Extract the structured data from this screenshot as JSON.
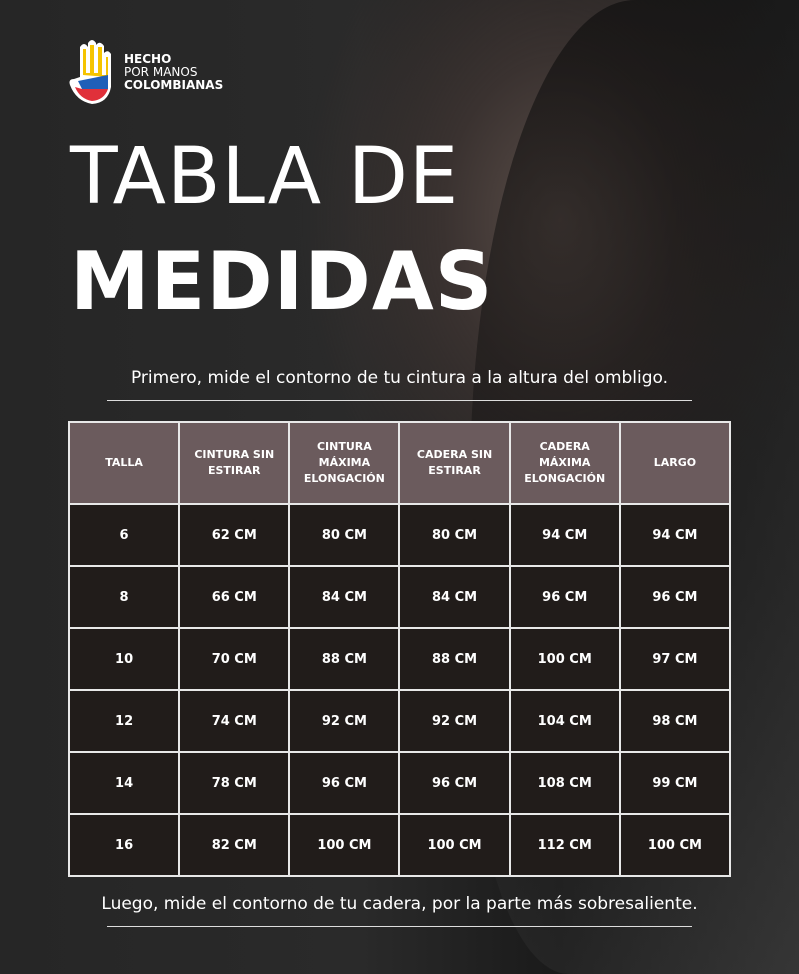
{
  "logo": {
    "line1": "HECHO",
    "line2": "POR MANOS",
    "line3": "COLOMBIANAS"
  },
  "title": {
    "line1": "TABLA DE",
    "line2": "MEDIDAS"
  },
  "intro": "Primero, mide  el contorno de tu cintura a la altura del ombligo.",
  "table": {
    "headers": [
      "TALLA",
      "CINTURA SIN ESTIRAR",
      "CINTURA MÁXIMA ELONGACIÓN",
      "CADERA SIN ESTIRAR",
      "CADERA MÁXIMA ELONGACIÓN",
      "LARGO"
    ],
    "rows": [
      [
        "6",
        "62 CM",
        "80 CM",
        "80 CM",
        "94 CM",
        "94 CM"
      ],
      [
        "8",
        "66 CM",
        "84 CM",
        "84 CM",
        "96 CM",
        "96 CM"
      ],
      [
        "10",
        "70 CM",
        "88 CM",
        "88 CM",
        "100 CM",
        "97 CM"
      ],
      [
        "12",
        "74 CM",
        "92 CM",
        "92 CM",
        "104 CM",
        "98 CM"
      ],
      [
        "14",
        "78 CM",
        "96 CM",
        "96 CM",
        "108 CM",
        "99 CM"
      ],
      [
        "16",
        "82 CM",
        "100 CM",
        "100 CM",
        "112 CM",
        "100 CM"
      ]
    ]
  },
  "footer": "Luego, mide el contorno de tu cadera, por la parte más sobresaliente.",
  "colors": {
    "header_bg": "#6b5b5d",
    "cell_bg": "#211c1a",
    "flag_yellow": "#f5c400",
    "flag_blue": "#1f5fb8",
    "flag_red": "#e0303a"
  }
}
